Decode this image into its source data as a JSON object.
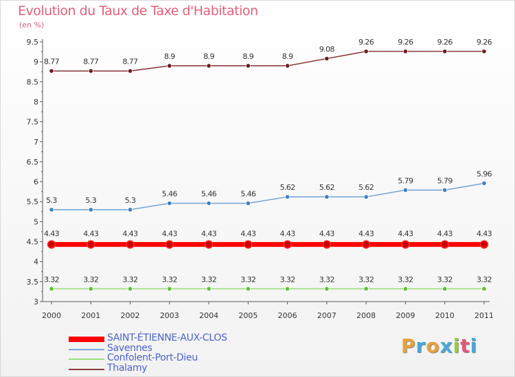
{
  "title": "Evolution du Taux de Taxe d'Habitation",
  "unit_label": "(en %)",
  "chart_data": {
    "type": "line",
    "title": "Evolution du Taux de Taxe d'Habitation",
    "ylabel": "(en %)",
    "xlabel": "",
    "x": [
      "2000",
      "2001",
      "2002",
      "2003",
      "2004",
      "2005",
      "2006",
      "2007",
      "2008",
      "2009",
      "2010",
      "2011"
    ],
    "ylim": [
      3,
      9.5
    ],
    "yticks": [
      "3",
      "3.5",
      "4",
      "4.5",
      "5",
      "5.5",
      "6",
      "6.5",
      "7",
      "7.5",
      "8",
      "8.5",
      "9",
      "9.5"
    ],
    "grid": false,
    "legend": "bottom-left",
    "series": [
      {
        "name": "SAINT-ÉTIENNE-AUX-CLOS",
        "color": "#ff0000",
        "marker_color": "#cc0000",
        "weight": "thick",
        "values": [
          4.43,
          4.43,
          4.43,
          4.43,
          4.43,
          4.43,
          4.43,
          4.43,
          4.43,
          4.43,
          4.43,
          4.43
        ],
        "labels": [
          "4.43",
          "4.43",
          "4.43",
          "4.43",
          "4.43",
          "4.43",
          "4.43",
          "4.43",
          "4.43",
          "4.43",
          "4.43",
          "4.43"
        ]
      },
      {
        "name": "Savennes",
        "color": "#79a8d6",
        "marker_color": "#3f7fc0",
        "weight": "thin",
        "values": [
          5.3,
          5.3,
          5.3,
          5.46,
          5.46,
          5.46,
          5.62,
          5.62,
          5.62,
          5.79,
          5.79,
          5.96
        ],
        "labels": [
          "5.3",
          "5.3",
          "5.3",
          "5.46",
          "5.46",
          "5.46",
          "5.62",
          "5.62",
          "5.62",
          "5.79",
          "5.79",
          "5.96"
        ]
      },
      {
        "name": "Confolent-Port-Dieu",
        "color": "#9be07a",
        "marker_color": "#66bb3a",
        "weight": "thin",
        "values": [
          3.32,
          3.32,
          3.32,
          3.32,
          3.32,
          3.32,
          3.32,
          3.32,
          3.32,
          3.32,
          3.32,
          3.32
        ],
        "labels": [
          "3.32",
          "3.32",
          "3.32",
          "3.32",
          "3.32",
          "3.32",
          "3.32",
          "3.32",
          "3.32",
          "3.32",
          "3.32",
          "3.32"
        ]
      },
      {
        "name": "Thalamy",
        "color": "#8a3a3a",
        "marker_color": "#6b1d1d",
        "weight": "thin",
        "values": [
          8.77,
          8.77,
          8.77,
          8.9,
          8.9,
          8.9,
          8.9,
          9.08,
          9.26,
          9.26,
          9.26,
          9.26
        ],
        "labels": [
          "8.77",
          "8.77",
          "8.77",
          "8.9",
          "8.9",
          "8.9",
          "8.9",
          "9.08",
          "9.26",
          "9.26",
          "9.26",
          "9.26"
        ]
      }
    ]
  },
  "logo": {
    "letters": [
      "P",
      "r",
      "o",
      "x",
      "i",
      "t",
      "i"
    ],
    "colors": [
      "#e9a23b",
      "#4aa8d8",
      "#e9a23b",
      "#4aa8d8",
      "#9acd32",
      "#e05a7a",
      "#4aa8d8"
    ]
  }
}
